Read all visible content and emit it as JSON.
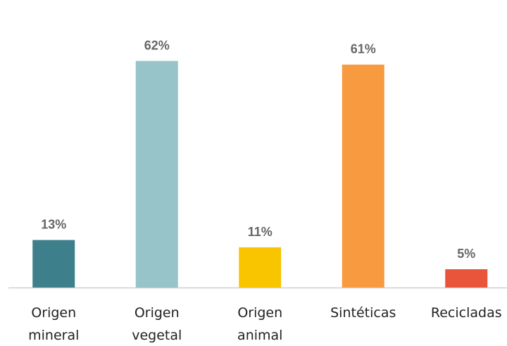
{
  "chart_data": {
    "type": "bar",
    "categories": [
      "Origen mineral",
      "Origen vegetal",
      "Origen animal",
      "Sintéticas",
      "Recicladas"
    ],
    "values": [
      13,
      62,
      11,
      61,
      5
    ],
    "value_labels": [
      "13%",
      "62%",
      "11%",
      "61%",
      "5%"
    ],
    "colors": [
      "#3d7f8a",
      "#96c4c9",
      "#f9c500",
      "#f79a40",
      "#e8553a"
    ],
    "ylim": [
      0,
      70
    ]
  }
}
